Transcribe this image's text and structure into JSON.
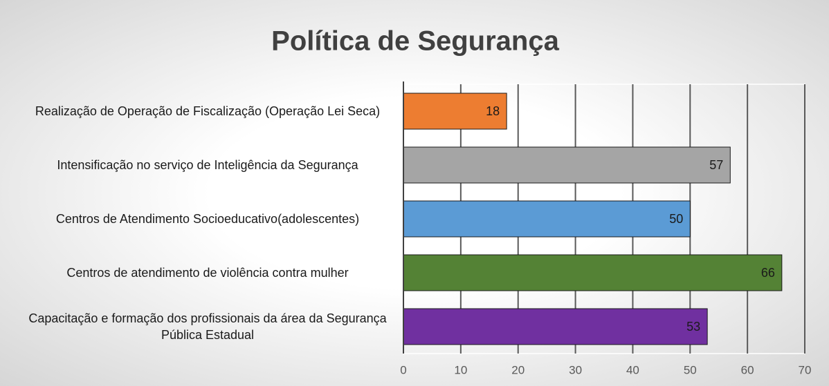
{
  "chart_data": {
    "type": "barh",
    "title": "Política de Segurança",
    "categories": [
      "Realização de Operação de Fiscalização (Operação Lei Seca)",
      "Intensificação no serviço de Inteligência da Segurança",
      "Centros de Atendimento Socioeducativo(adolescentes)",
      "Centros de atendimento de violência contra mulher",
      "Capacitação e formação dos profissionais da área da Segurança Pública Estadual"
    ],
    "values": [
      18,
      57,
      50,
      66,
      53
    ],
    "colors": [
      "#ed7d31",
      "#a5a5a5",
      "#5b9bd5",
      "#548235",
      "#7030a0"
    ],
    "xlim": [
      0,
      70
    ],
    "xticks": [
      0,
      10,
      20,
      30,
      40,
      50,
      60,
      70
    ],
    "grid": true
  }
}
